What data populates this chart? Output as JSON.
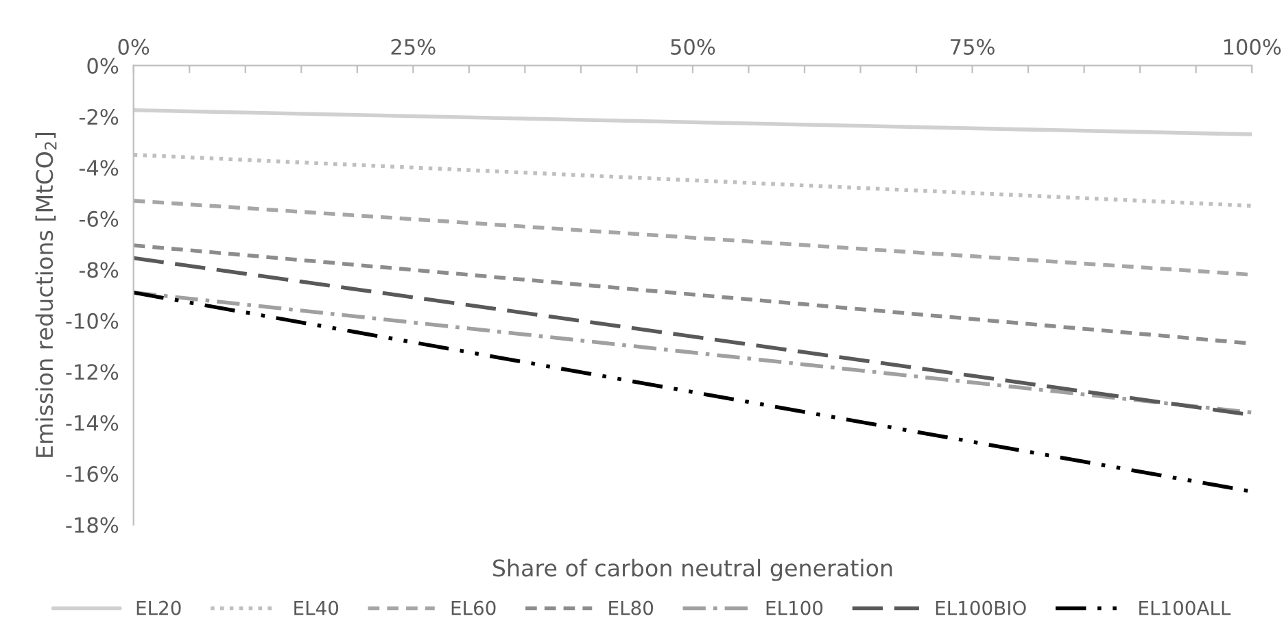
{
  "chart_data": {
    "type": "line",
    "xlabel": "Share of carbon neutral generation",
    "ylabel": "Emission reductions [MtCO$_{2}$]",
    "x": [
      0,
      100
    ],
    "series": [
      {
        "name": "EL20",
        "color": "#d0d0d0",
        "line_style": "solid",
        "values": [
          -1.75,
          -2.7
        ]
      },
      {
        "name": "EL40",
        "color": "#bfbfbf",
        "line_style": "dotted",
        "values": [
          -3.5,
          -5.5
        ]
      },
      {
        "name": "EL60",
        "color": "#a6a6a6",
        "line_style": "dashed",
        "values": [
          -5.3,
          -8.2
        ]
      },
      {
        "name": "EL80",
        "color": "#8c8c8c",
        "line_style": "dashed",
        "values": [
          -7.05,
          -10.9
        ]
      },
      {
        "name": "EL100",
        "color": "#a0a0a0",
        "line_style": "dashdot",
        "values": [
          -8.9,
          -13.6
        ]
      },
      {
        "name": "EL100BIO",
        "color": "#595959",
        "line_style": "longdash",
        "values": [
          -7.55,
          -13.7
        ]
      },
      {
        "name": "EL100ALL",
        "color": "#000000",
        "line_style": "dashdotdot",
        "values": [
          -8.9,
          -16.7
        ]
      }
    ],
    "xlim": [
      0,
      100
    ],
    "xticks": [
      {
        "value": 0,
        "label": "0%"
      },
      {
        "value": 5,
        "label": null
      },
      {
        "value": 10,
        "label": null
      },
      {
        "value": 15,
        "label": null
      },
      {
        "value": 20,
        "label": null
      },
      {
        "value": 25,
        "label": "25%"
      },
      {
        "value": 30,
        "label": null
      },
      {
        "value": 35,
        "label": null
      },
      {
        "value": 40,
        "label": null
      },
      {
        "value": 45,
        "label": null
      },
      {
        "value": 50,
        "label": "50%"
      },
      {
        "value": 55,
        "label": null
      },
      {
        "value": 60,
        "label": null
      },
      {
        "value": 65,
        "label": null
      },
      {
        "value": 70,
        "label": null
      },
      {
        "value": 75,
        "label": "75%"
      },
      {
        "value": 80,
        "label": null
      },
      {
        "value": 85,
        "label": null
      },
      {
        "value": 90,
        "label": null
      },
      {
        "value": 95,
        "label": null
      },
      {
        "value": 100,
        "label": "100%"
      }
    ],
    "ylim": [
      -18,
      0
    ],
    "yticks": [
      {
        "value": 0,
        "label": "0%"
      },
      {
        "value": -2,
        "label": "-2%"
      },
      {
        "value": -4,
        "label": "-4%"
      },
      {
        "value": -6,
        "label": "-6%"
      },
      {
        "value": -8,
        "label": "-8%"
      },
      {
        "value": -10,
        "label": "-10%"
      },
      {
        "value": -12,
        "label": "-12%"
      },
      {
        "value": -14,
        "label": "-14%"
      },
      {
        "value": -16,
        "label": "-16%"
      },
      {
        "value": -18,
        "label": "-18%"
      }
    ],
    "legend": "bottom",
    "grid": false,
    "marker": "none"
  }
}
